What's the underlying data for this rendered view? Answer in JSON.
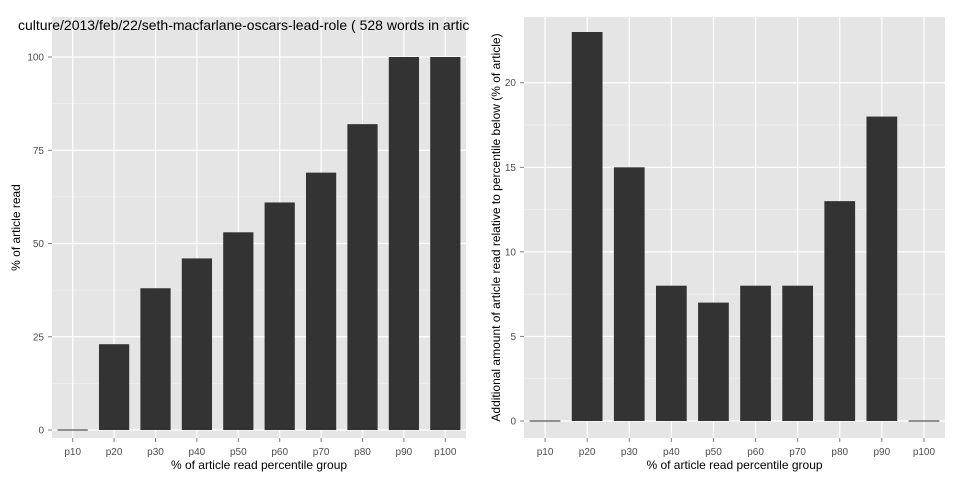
{
  "chart_data": [
    {
      "type": "bar",
      "title": "culture/2013/feb/22/seth-macfarlane-oscars-lead-role ( 528 words in artic",
      "xlabel": "% of article read percentile group",
      "ylabel": "% of article read",
      "categories": [
        "p10",
        "p20",
        "p30",
        "p40",
        "p50",
        "p60",
        "p70",
        "p80",
        "p90",
        "p100"
      ],
      "values": [
        0,
        23,
        38,
        46,
        53,
        61,
        69,
        82,
        100,
        100
      ],
      "yticks": [
        0,
        25,
        50,
        75,
        100
      ],
      "ylim": [
        0,
        100
      ],
      "grid": true,
      "bar_color": "#333333",
      "panel_bg": "#e5e5e5"
    },
    {
      "type": "bar",
      "title": "",
      "xlabel": "% of article read percentile group",
      "ylabel": "Additional amount of article read relative to percentile below (% of article)",
      "categories": [
        "p10",
        "p20",
        "p30",
        "p40",
        "p50",
        "p60",
        "p70",
        "p80",
        "p90",
        "p100"
      ],
      "values": [
        0,
        23,
        15,
        8,
        7,
        8,
        8,
        13,
        18,
        0
      ],
      "yticks": [
        0,
        5,
        10,
        15,
        20
      ],
      "ylim": [
        0,
        23
      ],
      "grid": true,
      "bar_color": "#333333",
      "panel_bg": "#e5e5e5"
    }
  ]
}
